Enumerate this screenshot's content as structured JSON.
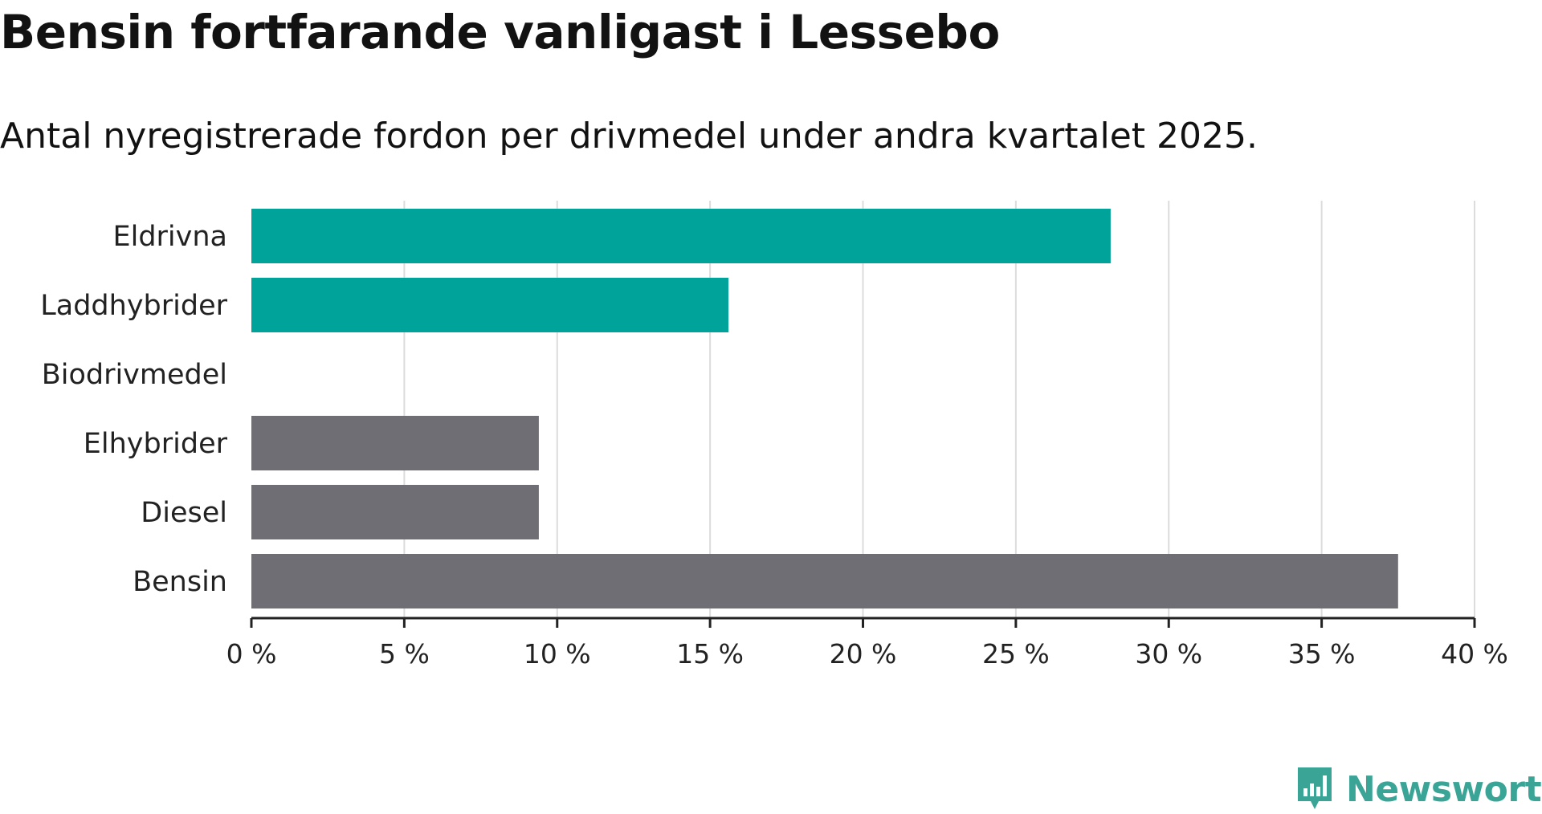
{
  "title": "Bensin fortfarande vanligast i Lessebo",
  "subtitle": "Antal nyregistrerade fordon per drivmedel under andra kvartalet 2025.",
  "brand": {
    "name": "Newsworthy",
    "color": "#3aa597",
    "icon": "newsworthy-logo-icon"
  },
  "colors": {
    "electric": "#00a39a",
    "fossil": "#6e6e74",
    "grid": "#dcdcdc",
    "axis": "#222222"
  },
  "chart_data": {
    "type": "bar",
    "orientation": "horizontal",
    "categories": [
      "Eldrivna",
      "Laddhybrider",
      "Biodrivmedel",
      "Elhybrider",
      "Diesel",
      "Bensin"
    ],
    "values": [
      28.1,
      15.6,
      0,
      9.4,
      9.4,
      37.5
    ],
    "bar_groups": [
      "electric",
      "electric",
      "electric",
      "fossil",
      "fossil",
      "fossil"
    ],
    "xlim": [
      0,
      40
    ],
    "xticks": [
      0,
      5,
      10,
      15,
      20,
      25,
      30,
      35,
      40
    ],
    "xtick_labels": [
      "0 %",
      "5 %",
      "10 %",
      "15 %",
      "20 %",
      "25 %",
      "30 %",
      "35 %",
      "40 %"
    ],
    "xlabel": "",
    "ylabel": "",
    "grid": true,
    "legend": "none"
  }
}
